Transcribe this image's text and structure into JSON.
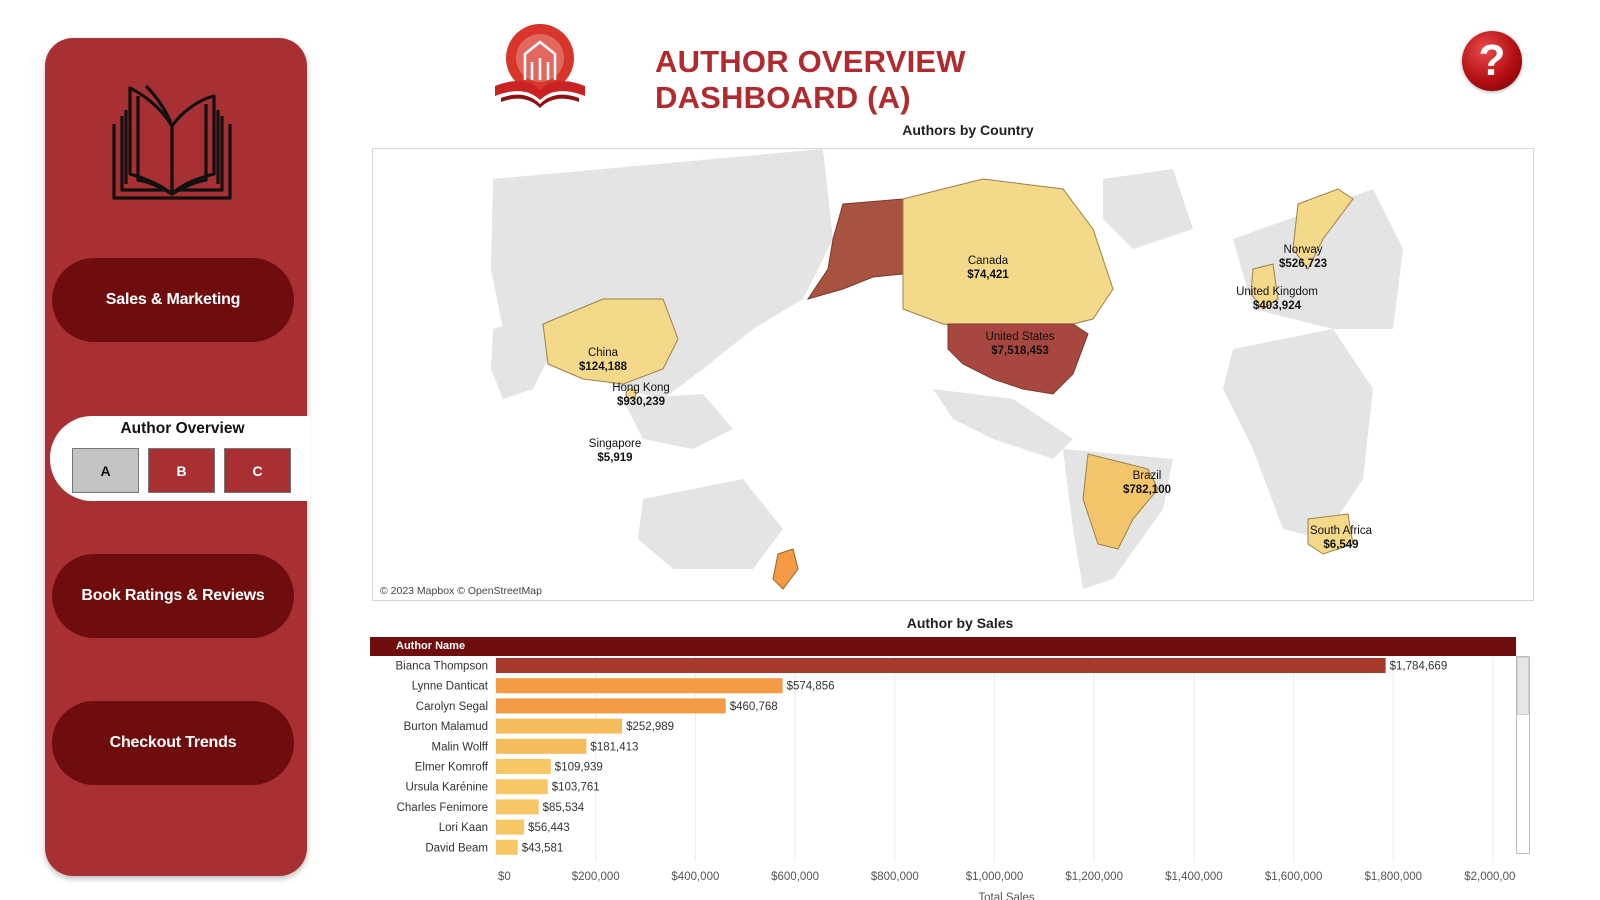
{
  "header": {
    "title": "AUTHOR OVERVIEW DASHBOARD (A)",
    "help_label": "?",
    "title_color": "#b12a2e"
  },
  "sidebar": {
    "nav": [
      {
        "label": "Sales & Marketing"
      },
      {
        "label": "Book Ratings & Reviews"
      },
      {
        "label": "Checkout Trends"
      }
    ],
    "author_overview": {
      "title": "Author Overview",
      "options": [
        "A",
        "B",
        "C"
      ],
      "selected": "A"
    },
    "colors": {
      "panel": "#a83032",
      "button": "#6f0d0e"
    }
  },
  "map": {
    "title": "Authors by Country",
    "credit": "© 2023 Mapbox © OpenStreetMap",
    "countries": [
      {
        "name": "Canada",
        "value": "$74,421"
      },
      {
        "name": "United States",
        "value": "$7,518,453"
      },
      {
        "name": "China",
        "value": "$124,188"
      },
      {
        "name": "Hong Kong",
        "value": "$930,239"
      },
      {
        "name": "Singapore",
        "value": "$5,919"
      },
      {
        "name": "Norway",
        "value": "$526,723"
      },
      {
        "name": "United Kingdom",
        "value": "$403,924"
      },
      {
        "name": "Brazil",
        "value": "$782,100"
      },
      {
        "name": "South Africa",
        "value": "$6,549"
      }
    ]
  },
  "chart_data": {
    "type": "bar",
    "orientation": "horizontal",
    "title": "Author by Sales",
    "column_header": "Author Name",
    "xlabel": "Total Sales",
    "ylabel": "",
    "xlim": [
      0,
      2000000
    ],
    "x_ticks": [
      0,
      200000,
      400000,
      600000,
      800000,
      1000000,
      1200000,
      1400000,
      1600000,
      1800000,
      2000000
    ],
    "x_tick_labels": [
      "$0",
      "$200,000",
      "$400,000",
      "$600,000",
      "$800,000",
      "$1,000,000",
      "$1,200,000",
      "$1,400,000",
      "$1,600,000",
      "$1,800,000",
      "$2,000,000"
    ],
    "categories": [
      "Bianca Thompson",
      "Lynne Danticat",
      "Carolyn Segal",
      "Burton Malamud",
      "Malin Wolff",
      "Elmer Komroff",
      "Ursula Karénine",
      "Charles Fenimore",
      "Lori Kaan",
      "David Beam"
    ],
    "values": [
      1784669,
      574856,
      460768,
      252989,
      181413,
      109939,
      103761,
      85534,
      56443,
      43581
    ],
    "value_labels": [
      "$1,784,669",
      "$574,856",
      "$460,768",
      "$252,989",
      "$181,413",
      "$109,939",
      "$103,761",
      "$85,534",
      "$56,443",
      "$43,581"
    ],
    "colors": [
      "#a83a2c",
      "#f39a43",
      "#f39a43",
      "#f6bb5a",
      "#f6bb5a",
      "#f7c766",
      "#f7c766",
      "#f7c766",
      "#f7c766",
      "#f7c766"
    ]
  }
}
